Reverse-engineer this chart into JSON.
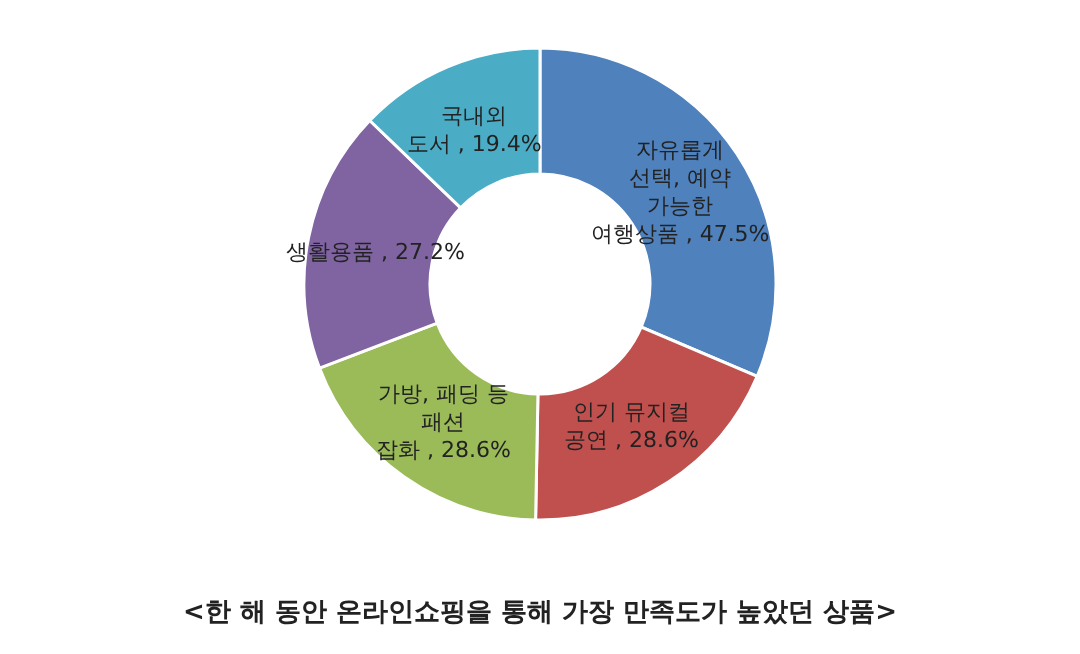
{
  "chart_data": {
    "type": "donut",
    "title": "<한 해 동안 온라인쇼핑을 통해 가장 만족도가 높았던 상품>",
    "categories": [
      "자유롭게 선택, 예약 가능한 여행상품",
      "인기 뮤지컬 공연",
      "가방, 패딩 등 패션 잡화",
      "생활용품",
      "국내외 도서"
    ],
    "values": [
      47.5,
      28.6,
      28.6,
      27.2,
      19.4
    ],
    "colors": [
      "#4f81bd",
      "#c0504d",
      "#9bbb59",
      "#8064a2",
      "#4bacc6"
    ],
    "value_labels": [
      "47.5%",
      "28.6%",
      "28.6%",
      "27.2%",
      "19.4%"
    ]
  }
}
